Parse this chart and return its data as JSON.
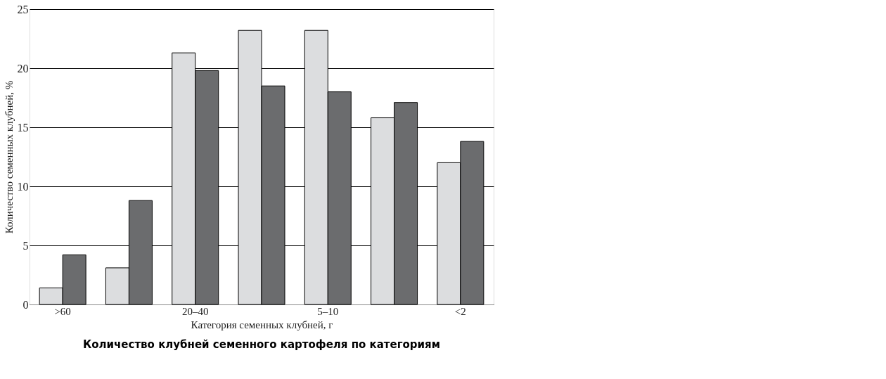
{
  "chart_data": {
    "type": "bar",
    "title": "Количество клубней семенного картофеля по категориям",
    "xlabel": "Категория семенных клубней, г",
    "ylabel": "Количество семенных клубней, %",
    "categories": [
      ">60",
      null,
      "20–40",
      null,
      "5–10",
      null,
      "<2"
    ],
    "series": [
      {
        "color": "#dcdddf",
        "values": [
          1.4,
          3.1,
          21.3,
          23.2,
          23.2,
          15.8,
          12.0
        ]
      },
      {
        "color": "#6b6c6e",
        "values": [
          4.2,
          8.8,
          19.8,
          18.5,
          18.0,
          17.1,
          13.8
        ]
      }
    ],
    "ylim": [
      0,
      25
    ],
    "yticks": [
      0,
      5,
      10,
      15,
      20,
      25
    ],
    "grid": "y",
    "legend": false
  }
}
